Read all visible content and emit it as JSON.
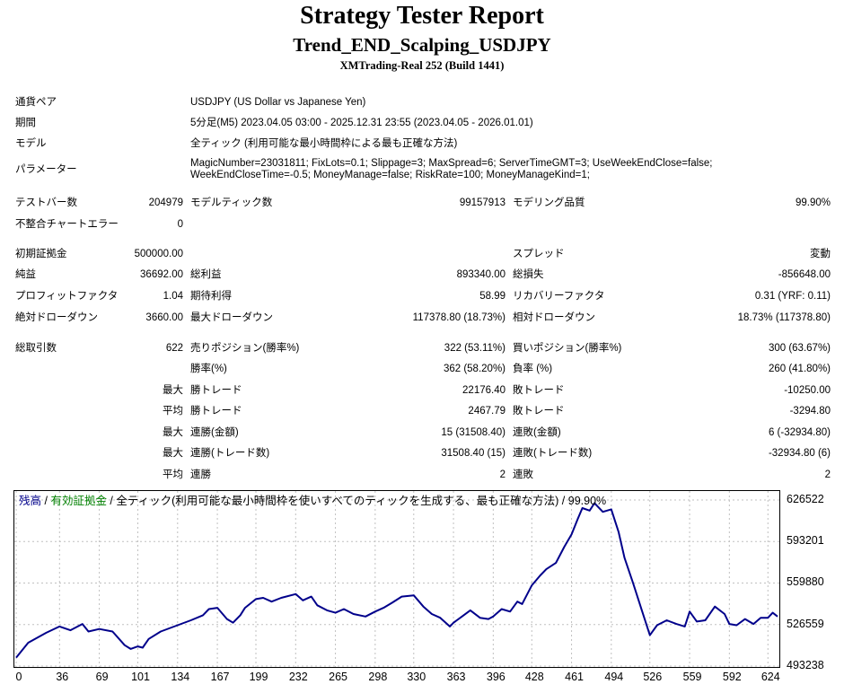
{
  "header": {
    "title": "Strategy Tester Report",
    "subtitle": "Trend_END_Scalping_USDJPY",
    "server": "XMTrading-Real 252 (Build 1441)"
  },
  "info": {
    "pair_label": "通貨ペア",
    "pair_value": "USDJPY (US Dollar vs Japanese Yen)",
    "period_label": "期間",
    "period_value": "5分足(M5) 2023.04.05 03:00 - 2025.12.31 23:55 (2023.04.05 - 2026.01.01)",
    "model_label": "モデル",
    "model_value": "全ティック (利用可能な最小時間枠による最も正確な方法)",
    "params_label": "パラメーター",
    "params_value": "MagicNumber=23031811; FixLots=0.1; Slippage=3; MaxSpread=6; ServerTimeGMT=3; UseWeekEndClose=false; WeekEndCloseTime=-0.5; MoneyManage=false; RiskRate=100; MoneyManageKind=1;"
  },
  "stats": {
    "bars_label": "テストバー数",
    "bars_value": "204979",
    "ticks_label": "モデルティック数",
    "ticks_value": "99157913",
    "quality_label": "モデリング品質",
    "quality_value": "99.90%",
    "errors_label": "不整合チャートエラー",
    "errors_value": "0",
    "deposit_label": "初期証拠金",
    "deposit_value": "500000.00",
    "spread_label": "スプレッド",
    "spread_value": "変動",
    "net_label": "純益",
    "net_value": "36692.00",
    "gross_profit_label": "総利益",
    "gross_profit_value": "893340.00",
    "gross_loss_label": "総損失",
    "gross_loss_value": "-856648.00",
    "pf_label": "プロフィットファクタ",
    "pf_value": "1.04",
    "expected_label": "期待利得",
    "expected_value": "58.99",
    "recovery_label": "リカバリーファクタ",
    "recovery_value": "0.31 (YRF: 0.11)",
    "abs_dd_label": "絶対ドローダウン",
    "abs_dd_value": "3660.00",
    "max_dd_label": "最大ドローダウン",
    "max_dd_value": "117378.80 (18.73%)",
    "rel_dd_label": "相対ドローダウン",
    "rel_dd_value": "18.73% (117378.80)",
    "total_label": "総取引数",
    "total_value": "622",
    "short_label": "売りポジション(勝率%)",
    "short_value": "322 (53.11%)",
    "long_label": "買いポジション(勝率%)",
    "long_value": "300 (63.67%)",
    "winrate_label": "勝率(%)",
    "winrate_value": "362 (58.20%)",
    "lossrate_label": "負率 (%)",
    "lossrate_value": "260 (41.80%)",
    "max_label": "最大",
    "avg_label": "平均",
    "win_trade_label": "勝トレード",
    "loss_trade_label": "敗トレード",
    "largest_win_value": "22176.40",
    "largest_loss_value": "-10250.00",
    "avg_win_value": "2467.79",
    "avg_loss_value": "-3294.80",
    "consec_wins_money_label": "連勝(金額)",
    "consec_wins_money_value": "15 (31508.40)",
    "consec_losses_money_label": "連敗(金額)",
    "consec_losses_money_value": "6 (-32934.80)",
    "consec_wins_count_label": "連勝(トレード数)",
    "consec_wins_count_value": "31508.40 (15)",
    "consec_losses_count_label": "連敗(トレード数)",
    "consec_losses_count_value": "-32934.80 (6)",
    "avg_consec_win_label": "連勝",
    "avg_consec_win_value": "2",
    "avg_consec_loss_label": "連敗",
    "avg_consec_loss_value": "2"
  },
  "legend": {
    "balance": "残高",
    "sep1": " / ",
    "equity": "有効証拠金",
    "sep2": " / ",
    "model": "全ティック(利用可能な最小時間枠を使いすべてのティックを生成する、最も正確な方法) / 99.90%"
  },
  "colors": {
    "balance": "#00008b",
    "equity": "#008000",
    "grid": "#c0c0c0"
  },
  "chart_data": {
    "type": "line",
    "title": "",
    "xlabel": "",
    "ylabel": "",
    "grid": true,
    "xlim": [
      0,
      632
    ],
    "ylim": [
      493238,
      633000
    ],
    "x_ticks": [
      0,
      36,
      69,
      101,
      134,
      167,
      199,
      232,
      265,
      298,
      330,
      363,
      396,
      428,
      461,
      494,
      526,
      559,
      592,
      624
    ],
    "y_ticks": [
      493238,
      526559,
      559880,
      593201,
      626522
    ],
    "series": [
      {
        "name": "残高",
        "x": [
          0,
          10,
          25,
          36,
          45,
          55,
          60,
          69,
          80,
          90,
          95,
          101,
          105,
          110,
          120,
          134,
          145,
          155,
          160,
          167,
          175,
          180,
          186,
          190,
          199,
          205,
          212,
          220,
          232,
          238,
          245,
          250,
          258,
          265,
          272,
          280,
          290,
          298,
          305,
          312,
          320,
          330,
          338,
          345,
          352,
          360,
          363,
          370,
          377,
          385,
          392,
          396,
          403,
          410,
          416,
          420,
          428,
          435,
          440,
          448,
          455,
          461,
          466,
          470,
          476,
          480,
          487,
          494,
          500,
          505,
          512,
          520,
          526,
          532,
          540,
          548,
          555,
          559,
          565,
          572,
          580,
          588,
          592,
          598,
          605,
          612,
          618,
          624,
          628,
          632
        ],
        "values": [
          500000,
          512000,
          520000,
          525000,
          522000,
          527000,
          521000,
          523000,
          521000,
          510000,
          507000,
          509000,
          508000,
          515000,
          521000,
          526000,
          530000,
          534000,
          539000,
          540000,
          531000,
          528000,
          534000,
          540000,
          547000,
          548000,
          545000,
          548000,
          551000,
          546000,
          549000,
          542000,
          538000,
          536000,
          539000,
          535000,
          533000,
          537000,
          540000,
          544000,
          549000,
          550000,
          541000,
          535000,
          532000,
          525000,
          528000,
          533000,
          538000,
          532000,
          531000,
          533000,
          539000,
          537000,
          545000,
          543000,
          558000,
          566000,
          571000,
          576000,
          589000,
          599000,
          611000,
          620000,
          618000,
          624000,
          617000,
          619000,
          601000,
          580000,
          560000,
          536000,
          518000,
          526000,
          530000,
          527000,
          525000,
          537000,
          529000,
          530000,
          541000,
          535000,
          527000,
          526000,
          531000,
          527000,
          532000,
          532000,
          536000,
          533000
        ]
      }
    ]
  }
}
